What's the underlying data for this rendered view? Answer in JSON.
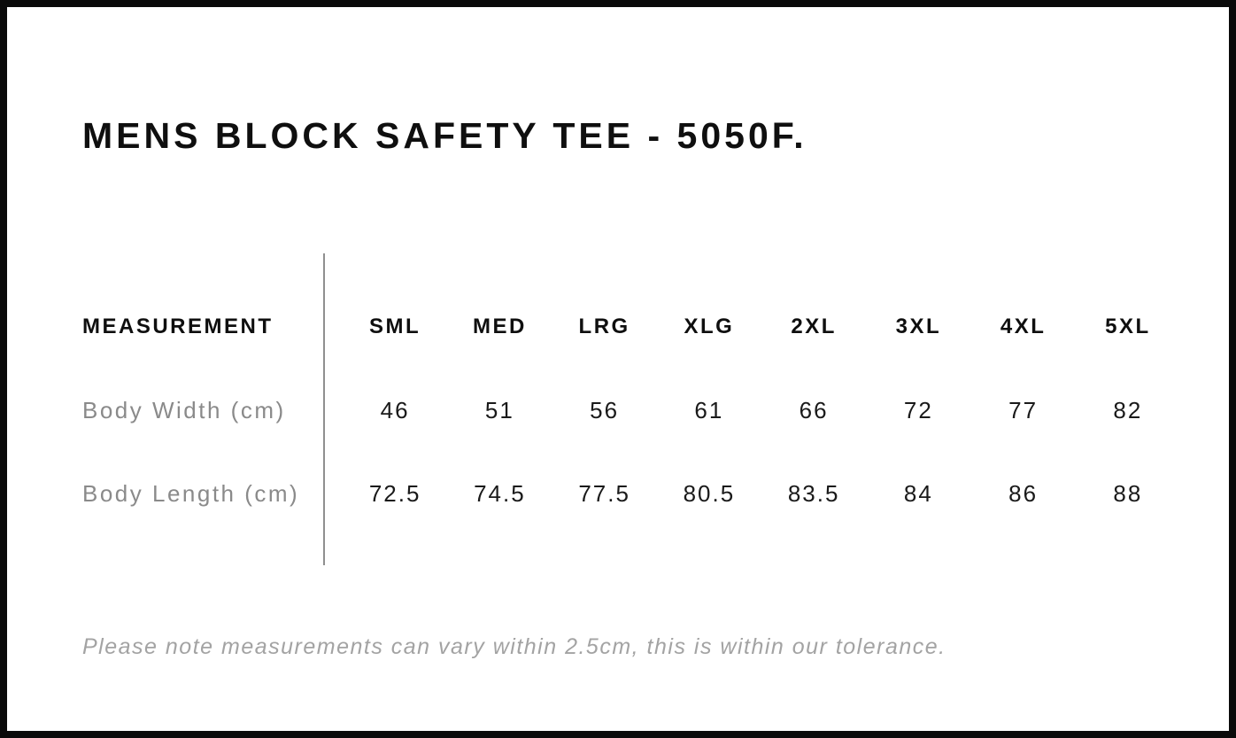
{
  "page": {
    "title": "MENS BLOCK SAFETY TEE - 5050F."
  },
  "table": {
    "header_label": "MEASUREMENT",
    "sizes": [
      "SML",
      "MED",
      "LRG",
      "XLG",
      "2XL",
      "3XL",
      "4XL",
      "5XL"
    ],
    "rows": [
      {
        "label": "Body Width (cm)",
        "values": [
          "46",
          "51",
          "56",
          "61",
          "66",
          "72",
          "77",
          "82"
        ]
      },
      {
        "label": "Body Length (cm)",
        "values": [
          "72.5",
          "74.5",
          "77.5",
          "80.5",
          "83.5",
          "84",
          "86",
          "88"
        ]
      }
    ]
  },
  "footer": {
    "note": "Please note measurements can vary within 2.5cm, this is within our tolerance."
  },
  "colors": {
    "frame_border": "#0a0a0a",
    "heading_text": "#0f0f0f",
    "row_label_text": "#8a8a8a",
    "value_text": "#1a1a1a",
    "note_text": "#a3a3a3",
    "divider_line": "#8f8f8f"
  },
  "chart_data": {
    "type": "table",
    "title": "MENS BLOCK SAFETY TEE - 5050F.",
    "columns": [
      "MEASUREMENT",
      "SML",
      "MED",
      "LRG",
      "XLG",
      "2XL",
      "3XL",
      "4XL",
      "5XL"
    ],
    "rows": [
      [
        "Body Width (cm)",
        46,
        51,
        56,
        61,
        66,
        72,
        77,
        82
      ],
      [
        "Body Length (cm)",
        72.5,
        74.5,
        77.5,
        80.5,
        83.5,
        84,
        86,
        88
      ]
    ],
    "note": "Please note measurements can vary within 2.5cm, this is within our tolerance."
  }
}
